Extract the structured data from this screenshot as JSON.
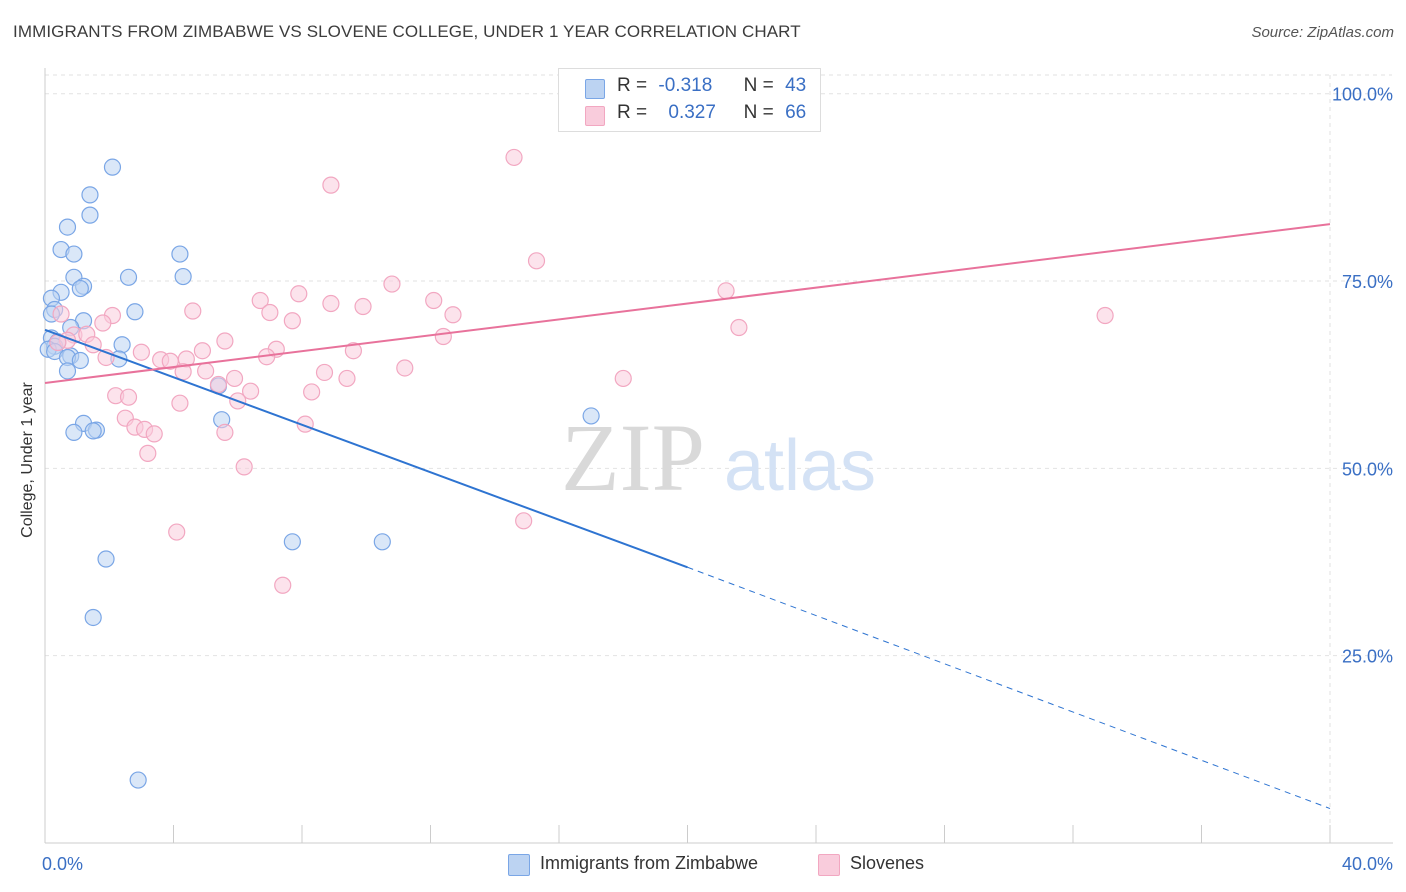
{
  "header": {
    "title": "IMMIGRANTS FROM ZIMBABWE VS SLOVENE COLLEGE, UNDER 1 YEAR CORRELATION CHART",
    "source": "Source: ZipAtlas.com"
  },
  "watermark": {
    "zip": "ZIP",
    "atlas": "atlas"
  },
  "legend": {
    "rows": [
      {
        "r_label": "R =",
        "r_value": "-0.318",
        "n_label": "N =",
        "n_value": "43"
      },
      {
        "r_label": "R =",
        "r_value": "0.327",
        "n_label": "N =",
        "n_value": "66"
      }
    ]
  },
  "chart_data": {
    "type": "scatter",
    "title": "IMMIGRANTS FROM ZIMBABWE VS SLOVENE COLLEGE, UNDER 1 YEAR CORRELATION CHART",
    "xlabel": "",
    "ylabel": "College, Under 1 year",
    "xlim": [
      0,
      40
    ],
    "ylim": [
      0,
      102.5
    ],
    "x_tick_labels": [
      "0.0%",
      "40.0%"
    ],
    "y_ticks": [
      25,
      50,
      75,
      100
    ],
    "y_tick_labels": [
      "25.0%",
      "50.0%",
      "75.0%",
      "100.0%"
    ],
    "grid": true,
    "legend_placement": "top-center",
    "series": [
      {
        "name": "Immigrants from Zimbabwe",
        "color": "#7aa6e6",
        "fill": "#bcd3f2",
        "trend_color": "#2e74d1",
        "trend": {
          "x_start": 0,
          "y_start": 68.5,
          "x_solid_end": 20,
          "y_solid_end": 36.8,
          "x_end": 40,
          "y_end": 4.6,
          "dashed_after_solid_end": true
        },
        "points": [
          [
            2.1,
            90.2
          ],
          [
            1.4,
            86.5
          ],
          [
            1.4,
            83.8
          ],
          [
            0.7,
            82.2
          ],
          [
            0.5,
            79.2
          ],
          [
            0.9,
            78.6
          ],
          [
            4.2,
            78.6
          ],
          [
            2.6,
            75.5
          ],
          [
            4.3,
            75.6
          ],
          [
            0.9,
            75.5
          ],
          [
            1.2,
            74.3
          ],
          [
            0.5,
            73.5
          ],
          [
            1.1,
            74.0
          ],
          [
            0.2,
            72.7
          ],
          [
            0.3,
            71.2
          ],
          [
            0.2,
            70.6
          ],
          [
            2.8,
            70.9
          ],
          [
            1.2,
            69.7
          ],
          [
            0.8,
            68.8
          ],
          [
            0.2,
            67.4
          ],
          [
            0.4,
            66.9
          ],
          [
            0.3,
            66.3
          ],
          [
            2.4,
            66.5
          ],
          [
            0.1,
            65.9
          ],
          [
            0.3,
            65.6
          ],
          [
            0.8,
            65.0
          ],
          [
            0.7,
            64.8
          ],
          [
            1.1,
            64.4
          ],
          [
            2.3,
            64.6
          ],
          [
            0.7,
            63.0
          ],
          [
            5.4,
            61.0
          ],
          [
            17.0,
            57.0
          ],
          [
            5.5,
            56.5
          ],
          [
            1.2,
            56.0
          ],
          [
            1.6,
            55.1
          ],
          [
            1.5,
            55.0
          ],
          [
            0.9,
            54.8
          ],
          [
            7.7,
            40.2
          ],
          [
            10.5,
            40.2
          ],
          [
            1.9,
            37.9
          ],
          [
            1.5,
            30.1
          ],
          [
            2.9,
            8.4
          ]
        ]
      },
      {
        "name": "Slovenes",
        "color": "#f2a7c1",
        "fill": "#f9ccdc",
        "trend_color": "#e8729b",
        "trend": {
          "x_start": 0,
          "y_start": 61.4,
          "x_end": 40,
          "y_end": 82.6
        },
        "points": [
          [
            14.6,
            91.5
          ],
          [
            8.9,
            87.8
          ],
          [
            15.3,
            77.7
          ],
          [
            10.8,
            74.6
          ],
          [
            21.2,
            73.7
          ],
          [
            7.9,
            73.3
          ],
          [
            6.7,
            72.4
          ],
          [
            12.1,
            72.4
          ],
          [
            8.9,
            72.0
          ],
          [
            9.9,
            71.6
          ],
          [
            4.6,
            71.0
          ],
          [
            7.0,
            70.8
          ],
          [
            12.7,
            70.5
          ],
          [
            33.0,
            70.4
          ],
          [
            2.1,
            70.4
          ],
          [
            0.5,
            70.6
          ],
          [
            7.7,
            69.7
          ],
          [
            1.8,
            69.4
          ],
          [
            21.6,
            68.8
          ],
          [
            0.9,
            67.8
          ],
          [
            12.4,
            67.6
          ],
          [
            1.3,
            67.9
          ],
          [
            0.7,
            67.1
          ],
          [
            5.6,
            67.0
          ],
          [
            1.5,
            66.5
          ],
          [
            0.4,
            66.8
          ],
          [
            7.2,
            65.9
          ],
          [
            9.6,
            65.7
          ],
          [
            4.9,
            65.7
          ],
          [
            3.0,
            65.5
          ],
          [
            6.9,
            64.9
          ],
          [
            1.9,
            64.8
          ],
          [
            4.4,
            64.6
          ],
          [
            3.6,
            64.5
          ],
          [
            3.9,
            64.3
          ],
          [
            11.2,
            63.4
          ],
          [
            5.0,
            63.0
          ],
          [
            4.3,
            62.9
          ],
          [
            8.7,
            62.8
          ],
          [
            18.0,
            62.0
          ],
          [
            9.4,
            62.0
          ],
          [
            5.9,
            62.0
          ],
          [
            5.4,
            61.2
          ],
          [
            6.4,
            60.3
          ],
          [
            8.3,
            60.2
          ],
          [
            2.2,
            59.7
          ],
          [
            2.6,
            59.5
          ],
          [
            6.0,
            59.0
          ],
          [
            4.2,
            58.7
          ],
          [
            2.5,
            56.7
          ],
          [
            8.1,
            55.9
          ],
          [
            2.8,
            55.5
          ],
          [
            3.1,
            55.2
          ],
          [
            5.6,
            54.8
          ],
          [
            3.4,
            54.6
          ],
          [
            3.2,
            52.0
          ],
          [
            6.2,
            50.2
          ],
          [
            14.9,
            43.0
          ],
          [
            4.1,
            41.5
          ],
          [
            7.4,
            34.4
          ]
        ]
      }
    ]
  }
}
